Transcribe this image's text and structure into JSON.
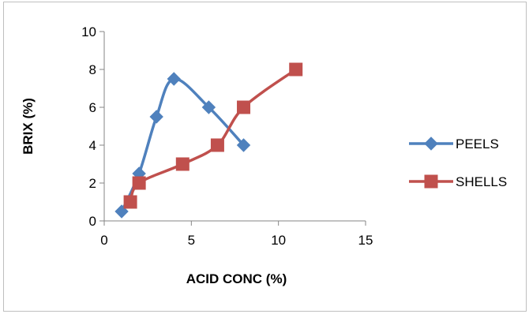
{
  "chart_data": {
    "type": "scatter",
    "title": "",
    "xlabel": "ACID CONC (%)",
    "ylabel": "BRIX (%)",
    "xlim": [
      0,
      15
    ],
    "ylim": [
      0,
      10
    ],
    "xticks": [
      0,
      5,
      10,
      15
    ],
    "yticks": [
      0,
      2,
      4,
      6,
      8,
      10
    ],
    "grid": false,
    "legend_position": "right",
    "smooth_lines": true,
    "series": [
      {
        "name": "PEELS",
        "color": "#4f81bd",
        "marker": "diamond",
        "x": [
          1,
          2,
          3,
          4,
          6,
          8
        ],
        "y": [
          0.5,
          2.5,
          5.5,
          7.5,
          6,
          4
        ]
      },
      {
        "name": "SHELLS",
        "color": "#c0504d",
        "marker": "square",
        "x": [
          1.5,
          2,
          4.5,
          6.5,
          8,
          11
        ],
        "y": [
          1,
          2,
          3,
          4,
          6,
          8
        ]
      }
    ]
  }
}
